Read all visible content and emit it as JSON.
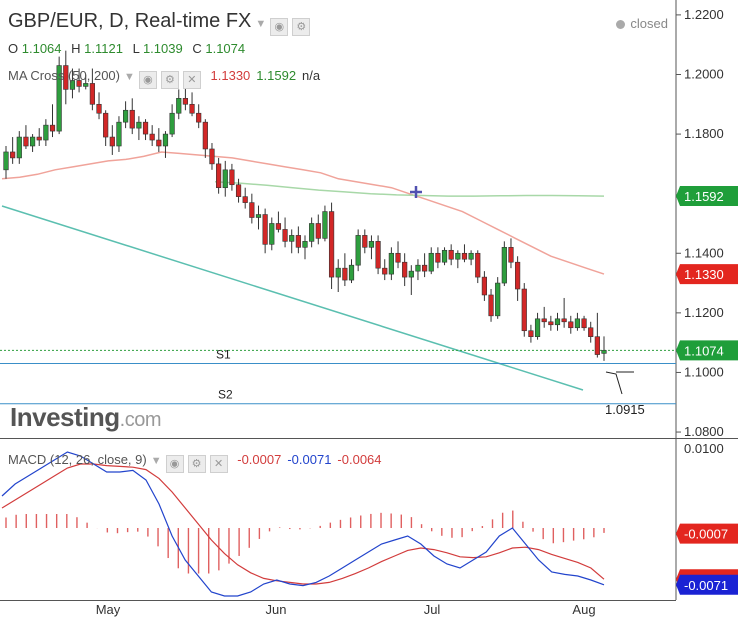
{
  "header": {
    "title": "GBP/EUR, D, Real-time FX",
    "status": "closed",
    "ohlc": {
      "o_label": "O",
      "o": "1.1064",
      "h_label": "H",
      "h": "1.1121",
      "l_label": "L",
      "l": "1.1039",
      "c_label": "C",
      "c": "1.1074"
    },
    "ma_label": "MA Cross (50, 200)",
    "ma_fast": "1.1330",
    "ma_slow": "1.1592",
    "ma_na": "n/a",
    "macd_label": "MACD (12, 26, close, 9)",
    "macd_hist": "-0.0007",
    "macd_line": "-0.0071",
    "macd_signal": "-0.0064"
  },
  "logo": {
    "name": "Investing",
    "suffix": ".com"
  },
  "colors": {
    "bull": "#2e9e3e",
    "bear": "#d22727",
    "ma_fast": "#f0a39a",
    "ma_slow": "#a8d8a8",
    "trend": "#5bbfb0",
    "support": "#3a8fc8",
    "macd": "#2244cc",
    "signal": "#d23c3c"
  },
  "chart_data": {
    "type": "candlestick",
    "x_labels": [
      "May",
      "Jun",
      "Jul",
      "Aug"
    ],
    "price_axis": {
      "ylim": [
        1.078,
        1.225
      ],
      "ticks": [
        "1.2200",
        "1.2000",
        "1.1800",
        "1.1400",
        "1.1200",
        "1.1000",
        "1.0800"
      ]
    },
    "price_tags": [
      {
        "label": "1.1592",
        "value": 1.1592,
        "color": "#1f9e3a"
      },
      {
        "label": "1.1330",
        "value": 1.133,
        "color": "#e3261f"
      },
      {
        "label": "1.1074",
        "value": 1.1074,
        "color": "#1f9e3a"
      }
    ],
    "support_levels": [
      {
        "name": "S1",
        "value": 1.103
      },
      {
        "name": "S2",
        "value": 1.0895
      }
    ],
    "annotation": {
      "label": "1.0915"
    },
    "candles_ohlc": [
      [
        1.168,
        1.176,
        1.165,
        1.174
      ],
      [
        1.174,
        1.179,
        1.17,
        1.172
      ],
      [
        1.172,
        1.181,
        1.17,
        1.179
      ],
      [
        1.179,
        1.183,
        1.175,
        1.176
      ],
      [
        1.176,
        1.18,
        1.174,
        1.179
      ],
      [
        1.179,
        1.182,
        1.176,
        1.178
      ],
      [
        1.178,
        1.185,
        1.176,
        1.183
      ],
      [
        1.183,
        1.19,
        1.179,
        1.181
      ],
      [
        1.181,
        1.206,
        1.18,
        1.203
      ],
      [
        1.203,
        1.208,
        1.19,
        1.195
      ],
      [
        1.195,
        1.202,
        1.192,
        1.198
      ],
      [
        1.198,
        1.202,
        1.194,
        1.196
      ],
      [
        1.196,
        1.2,
        1.195,
        1.197
      ],
      [
        1.197,
        1.202,
        1.188,
        1.19
      ],
      [
        1.19,
        1.194,
        1.185,
        1.187
      ],
      [
        1.187,
        1.188,
        1.176,
        1.179
      ],
      [
        1.179,
        1.183,
        1.173,
        1.176
      ],
      [
        1.176,
        1.186,
        1.174,
        1.184
      ],
      [
        1.184,
        1.191,
        1.182,
        1.188
      ],
      [
        1.188,
        1.192,
        1.18,
        1.182
      ],
      [
        1.182,
        1.186,
        1.178,
        1.184
      ],
      [
        1.184,
        1.185,
        1.178,
        1.18
      ],
      [
        1.18,
        1.183,
        1.176,
        1.178
      ],
      [
        1.178,
        1.182,
        1.174,
        1.176
      ],
      [
        1.176,
        1.181,
        1.172,
        1.18
      ],
      [
        1.18,
        1.19,
        1.179,
        1.187
      ],
      [
        1.187,
        1.195,
        1.185,
        1.192
      ],
      [
        1.192,
        1.196,
        1.188,
        1.19
      ],
      [
        1.19,
        1.194,
        1.186,
        1.187
      ],
      [
        1.187,
        1.19,
        1.182,
        1.184
      ],
      [
        1.184,
        1.185,
        1.172,
        1.175
      ],
      [
        1.175,
        1.177,
        1.168,
        1.17
      ],
      [
        1.17,
        1.172,
        1.16,
        1.162
      ],
      [
        1.162,
        1.171,
        1.159,
        1.168
      ],
      [
        1.168,
        1.17,
        1.161,
        1.163
      ],
      [
        1.163,
        1.165,
        1.157,
        1.159
      ],
      [
        1.159,
        1.162,
        1.155,
        1.157
      ],
      [
        1.157,
        1.16,
        1.15,
        1.152
      ],
      [
        1.152,
        1.156,
        1.148,
        1.153
      ],
      [
        1.153,
        1.155,
        1.14,
        1.143
      ],
      [
        1.143,
        1.152,
        1.141,
        1.15
      ],
      [
        1.15,
        1.154,
        1.147,
        1.148
      ],
      [
        1.148,
        1.152,
        1.142,
        1.144
      ],
      [
        1.144,
        1.148,
        1.14,
        1.146
      ],
      [
        1.146,
        1.149,
        1.14,
        1.142
      ],
      [
        1.142,
        1.146,
        1.138,
        1.144
      ],
      [
        1.144,
        1.152,
        1.142,
        1.15
      ],
      [
        1.15,
        1.153,
        1.143,
        1.145
      ],
      [
        1.145,
        1.156,
        1.144,
        1.154
      ],
      [
        1.154,
        1.157,
        1.128,
        1.132
      ],
      [
        1.132,
        1.138,
        1.127,
        1.135
      ],
      [
        1.135,
        1.14,
        1.129,
        1.131
      ],
      [
        1.131,
        1.138,
        1.13,
        1.136
      ],
      [
        1.136,
        1.148,
        1.134,
        1.146
      ],
      [
        1.146,
        1.148,
        1.14,
        1.142
      ],
      [
        1.142,
        1.146,
        1.138,
        1.144
      ],
      [
        1.144,
        1.146,
        1.133,
        1.135
      ],
      [
        1.135,
        1.138,
        1.131,
        1.133
      ],
      [
        1.133,
        1.142,
        1.131,
        1.14
      ],
      [
        1.14,
        1.144,
        1.135,
        1.137
      ],
      [
        1.137,
        1.14,
        1.129,
        1.132
      ],
      [
        1.132,
        1.136,
        1.126,
        1.134
      ],
      [
        1.134,
        1.138,
        1.131,
        1.136
      ],
      [
        1.136,
        1.14,
        1.132,
        1.134
      ],
      [
        1.134,
        1.142,
        1.133,
        1.14
      ],
      [
        1.14,
        1.142,
        1.135,
        1.137
      ],
      [
        1.137,
        1.142,
        1.136,
        1.141
      ],
      [
        1.141,
        1.143,
        1.136,
        1.138
      ],
      [
        1.138,
        1.141,
        1.135,
        1.14
      ],
      [
        1.14,
        1.143,
        1.137,
        1.138
      ],
      [
        1.138,
        1.141,
        1.136,
        1.14
      ],
      [
        1.14,
        1.141,
        1.13,
        1.132
      ],
      [
        1.132,
        1.134,
        1.124,
        1.126
      ],
      [
        1.126,
        1.128,
        1.117,
        1.119
      ],
      [
        1.119,
        1.132,
        1.118,
        1.13
      ],
      [
        1.13,
        1.144,
        1.129,
        1.142
      ],
      [
        1.142,
        1.145,
        1.135,
        1.137
      ],
      [
        1.137,
        1.139,
        1.124,
        1.128
      ],
      [
        1.128,
        1.13,
        1.112,
        1.114
      ],
      [
        1.114,
        1.116,
        1.11,
        1.112
      ],
      [
        1.112,
        1.12,
        1.111,
        1.118
      ],
      [
        1.118,
        1.122,
        1.115,
        1.117
      ],
      [
        1.117,
        1.119,
        1.114,
        1.116
      ],
      [
        1.116,
        1.12,
        1.114,
        1.118
      ],
      [
        1.118,
        1.125,
        1.115,
        1.117
      ],
      [
        1.117,
        1.119,
        1.113,
        1.115
      ],
      [
        1.115,
        1.12,
        1.114,
        1.118
      ],
      [
        1.118,
        1.119,
        1.114,
        1.115
      ],
      [
        1.115,
        1.117,
        1.11,
        1.112
      ],
      [
        1.112,
        1.12,
        1.105,
        1.106
      ],
      [
        1.1064,
        1.1121,
        1.1039,
        1.1074
      ]
    ],
    "ma50_series": [
      1.165,
      1.1655,
      1.1665,
      1.168,
      1.169,
      1.17,
      1.171,
      1.1715,
      1.1725,
      1.174,
      1.1735,
      1.173,
      1.1725,
      1.172,
      1.171,
      1.17,
      1.169,
      1.168,
      1.167,
      1.165,
      1.164,
      1.163,
      1.162,
      1.16,
      1.158,
      1.156,
      1.154,
      1.151,
      1.148,
      1.145,
      1.142,
      1.139,
      1.137,
      1.135,
      1.133
    ],
    "ma200_series": [
      1.164,
      1.1635,
      1.1628,
      1.162,
      1.1612,
      1.1606,
      1.16,
      1.1596,
      1.1594,
      1.1592,
      1.1592,
      1.1593,
      1.1594,
      1.1594,
      1.1593,
      1.1592
    ],
    "macd_axis": {
      "ylim": [
        -0.009,
        0.011
      ],
      "ticks": [
        "0.0100"
      ]
    },
    "macd_tags": [
      {
        "label": "-0.0007",
        "value": -0.0007,
        "color": "#e3261f"
      },
      {
        "label": "-0.0064",
        "value": -0.0064,
        "color": "#e3261f"
      },
      {
        "label": "-0.0071",
        "value": -0.0071,
        "color": "#1a22d4"
      }
    ],
    "macd_line": [
      0.004,
      0.0055,
      0.0065,
      0.0075,
      0.0085,
      0.0095,
      0.009,
      0.008,
      0.007,
      0.007,
      0.0072,
      0.006,
      0.003,
      -0.001,
      -0.004,
      -0.006,
      -0.008,
      -0.0085,
      -0.0085,
      -0.008,
      -0.007,
      -0.0065,
      -0.007,
      -0.0072,
      -0.0068,
      -0.006,
      -0.005,
      -0.004,
      -0.003,
      -0.002,
      -0.0015,
      -0.001,
      -0.002,
      -0.0035,
      -0.0045,
      -0.005,
      -0.004,
      -0.003,
      -0.001,
      0.0,
      -0.002,
      -0.004,
      -0.0055,
      -0.0058,
      -0.006,
      -0.0065,
      -0.0071
    ],
    "signal_line": [
      0.0025,
      0.0035,
      0.0045,
      0.0055,
      0.0065,
      0.0075,
      0.008,
      0.008,
      0.0078,
      0.0077,
      0.0076,
      0.0073,
      0.0062,
      0.0045,
      0.0025,
      0.0005,
      -0.0015,
      -0.0032,
      -0.0046,
      -0.0056,
      -0.0063,
      -0.0066,
      -0.0068,
      -0.007,
      -0.007,
      -0.0068,
      -0.0063,
      -0.0057,
      -0.005,
      -0.0042,
      -0.0035,
      -0.0028,
      -0.0025,
      -0.0027,
      -0.0031,
      -0.0036,
      -0.0037,
      -0.0036,
      -0.0031,
      -0.0025,
      -0.0024,
      -0.0027,
      -0.0033,
      -0.0038,
      -0.0043,
      -0.005,
      -0.0064
    ]
  }
}
